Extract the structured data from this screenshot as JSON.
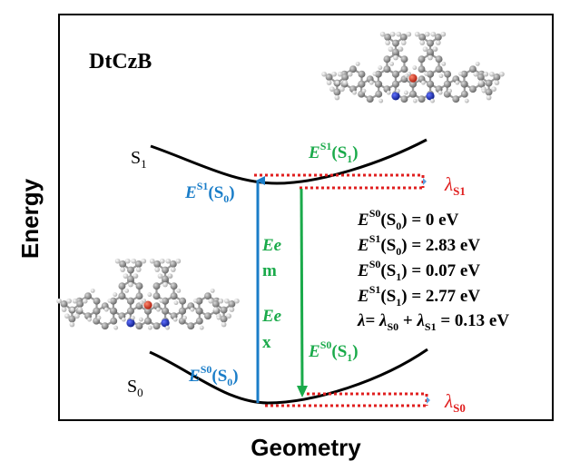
{
  "axes": {
    "y_label": "Energy",
    "x_label": "Geometry"
  },
  "molecule_name": "DtCzB",
  "states": {
    "excited": {
      "letter": "S",
      "sub": "1"
    },
    "ground": {
      "letter": "S",
      "sub": "0"
    }
  },
  "arrows": {
    "excitation": {
      "lines": [
        "Ee",
        "x"
      ]
    },
    "emission": {
      "lines": [
        "Ee",
        "m"
      ]
    }
  },
  "point_labels": {
    "es1_s0": {
      "E": "E",
      "sup": "S1",
      "arg_pre": "(S",
      "arg_sub": "0",
      "arg_post": ")"
    },
    "es1_s1": {
      "E": "E",
      "sup": "S1",
      "arg_pre": "(S",
      "arg_sub": "1",
      "arg_post": ")"
    },
    "es0_s0": {
      "E": "E",
      "sup": "S0",
      "arg_pre": "(S",
      "arg_sub": "0",
      "arg_post": ")"
    },
    "es0_s1": {
      "E": "E",
      "sup": "S0",
      "arg_pre": "(S",
      "arg_sub": "1",
      "arg_post": ")"
    }
  },
  "reorg": {
    "lambda_s1": {
      "sym": "λ",
      "sub": "S1"
    },
    "lambda_s0": {
      "sym": "λ",
      "sub": "S0"
    }
  },
  "energies": [
    {
      "E": "E",
      "sup": "S0",
      "arg_pre": "(S",
      "arg_sub": "0",
      "arg_post": ")",
      "value": " = 0 eV"
    },
    {
      "E": "E",
      "sup": "S1",
      "arg_pre": "(S",
      "arg_sub": "0",
      "arg_post": ")",
      "value": " = 2.83 eV"
    },
    {
      "E": "E",
      "sup": "S0",
      "arg_pre": "(S",
      "arg_sub": "1",
      "arg_post": ")",
      "value": " = 0.07 eV"
    },
    {
      "E": "E",
      "sup": "S1",
      "arg_pre": "(S",
      "arg_sub": "1",
      "arg_post": ")",
      "value": " = 2.77 eV"
    }
  ],
  "lambda_total": {
    "sym": "λ",
    "eq": "= ",
    "l1": "λ",
    "l1_sub": "S0",
    "plus": " + ",
    "l2": "λ",
    "l2_sub": "S1",
    "value": " = 0.13 eV"
  },
  "colors": {
    "blue": "#1a7dc8",
    "green": "#1aaa4a",
    "red": "#e02020",
    "black": "#000000",
    "carbon": "#8c8c8c",
    "hydrogen": "#d8d8d8",
    "nitrogen": "#1f2fb0",
    "boron": "#e04030"
  }
}
